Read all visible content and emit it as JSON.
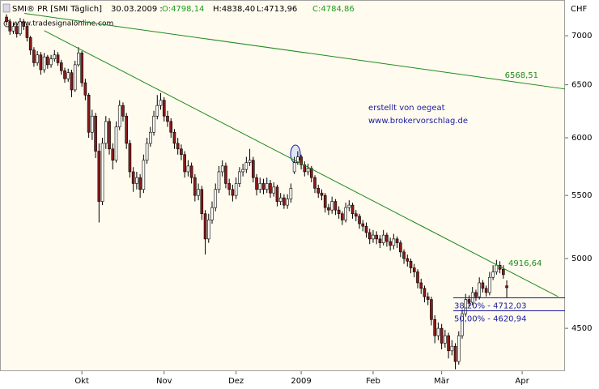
{
  "chart_data": {
    "type": "candlestick",
    "header": {
      "name": "SMI® PR [SMI Täglich]",
      "date": "30.03.2009 :",
      "open": "O:4798,14",
      "high": "H:4838,40",
      "low": "L:4713,96",
      "close": "C:4784,86"
    },
    "watermark": "www.tradesignalonline.com",
    "annotations": [
      "erstellt von oegeat",
      "www.brokervorschlag.de"
    ],
    "y_unit": "CHF",
    "log_scale": true,
    "ylim": [
      4218,
      7343
    ],
    "yticks": [
      4500,
      5000,
      5500,
      6000,
      6500,
      7000
    ],
    "xlim": [
      -1.9,
      163
    ],
    "xticks": [
      {
        "value": 22,
        "label": "Okt"
      },
      {
        "value": 46,
        "label": "Nov"
      },
      {
        "value": 67,
        "label": "Dez"
      },
      {
        "value": 86,
        "label": "2009"
      },
      {
        "value": 107,
        "label": "Feb"
      },
      {
        "value": 127,
        "label": "Mär"
      },
      {
        "value": 150.5,
        "label": "Apr"
      }
    ],
    "up_color": "#ffffff",
    "down_color": "#8b1a1a",
    "open": [
      7200,
      7150,
      7050,
      7100,
      7020,
      7150,
      7100,
      6980,
      6850,
      6720,
      6800,
      6650,
      6780,
      6700,
      6760,
      6800,
      6720,
      6640,
      6560,
      6620,
      6450,
      6700,
      6820,
      6520,
      6400,
      6050,
      6200,
      5880,
      5450,
      5950,
      6150,
      5900,
      5800,
      6100,
      6300,
      6200,
      5950,
      5700,
      5600,
      5650,
      5550,
      5800,
      5950,
      6050,
      6200,
      6300,
      6350,
      6200,
      6150,
      6050,
      5950,
      5900,
      5850,
      5700,
      5750,
      5650,
      5500,
      5550,
      5350,
      5150,
      5300,
      5400,
      5550,
      5700,
      5750,
      5600,
      5550,
      5500,
      5600,
      5700,
      5720,
      5780,
      5800,
      5650,
      5550,
      5600,
      5550,
      5600,
      5520,
      5570,
      5450,
      5480,
      5420,
      5470,
      5700,
      5780,
      5830,
      5760,
      5700,
      5730,
      5650,
      5560,
      5520,
      5500,
      5400,
      5380,
      5450,
      5380,
      5350,
      5300,
      5400,
      5420,
      5350,
      5330,
      5270,
      5250,
      5200,
      5150,
      5180,
      5150,
      5120,
      5180,
      5130,
      5100,
      5150,
      5120,
      5050,
      5000,
      4980,
      4930,
      4900,
      4820,
      4780,
      4720,
      4700,
      4560,
      4450,
      4500,
      4400,
      4450,
      4350,
      4380,
      4280,
      4450,
      4600,
      4700,
      4680,
      4750,
      4720,
      4820,
      4780,
      4750,
      4860,
      4900,
      4950,
      4920,
      4798.14
    ],
    "high": [
      7230,
      7180,
      7140,
      7130,
      7190,
      7180,
      7120,
      7000,
      6880,
      6840,
      6830,
      6820,
      6800,
      6800,
      6850,
      6830,
      6750,
      6670,
      6660,
      6650,
      6740,
      6880,
      6840,
      6560,
      6420,
      6260,
      6230,
      5950,
      6000,
      6200,
      6180,
      5950,
      6150,
      6350,
      6330,
      6230,
      5980,
      5740,
      5700,
      5680,
      5850,
      6000,
      6100,
      6250,
      6400,
      6420,
      6380,
      6250,
      6180,
      6080,
      6000,
      5940,
      5880,
      5800,
      5780,
      5680,
      5600,
      5580,
      5380,
      5350,
      5450,
      5600,
      5750,
      5800,
      5780,
      5640,
      5590,
      5650,
      5740,
      5770,
      5830,
      5900,
      5830,
      5680,
      5650,
      5640,
      5650,
      5630,
      5610,
      5590,
      5520,
      5510,
      5510,
      5600,
      5830,
      5880,
      5850,
      5790,
      5770,
      5750,
      5670,
      5590,
      5550,
      5520,
      5430,
      5490,
      5470,
      5410,
      5370,
      5440,
      5460,
      5440,
      5380,
      5350,
      5300,
      5280,
      5230,
      5220,
      5210,
      5180,
      5220,
      5200,
      5160,
      5190,
      5170,
      5140,
      5070,
      5030,
      5000,
      4960,
      4920,
      4850,
      4800,
      4750,
      4720,
      4590,
      4540,
      4530,
      4490,
      4470,
      4420,
      4400,
      4480,
      4630,
      4740,
      4730,
      4790,
      4770,
      4860,
      4840,
      4800,
      4900,
      4950,
      4990,
      4980,
      4950,
      4838.4
    ],
    "low": [
      7110,
      7010,
      7020,
      6980,
      7000,
      7060,
      6940,
      6800,
      6680,
      6690,
      6600,
      6620,
      6660,
      6670,
      6730,
      6690,
      6600,
      6520,
      6530,
      6380,
      6430,
      6680,
      6480,
      6350,
      6000,
      5980,
      5820,
      5280,
      5420,
      5900,
      5850,
      5720,
      5780,
      6070,
      6150,
      5900,
      5650,
      5530,
      5550,
      5480,
      5520,
      5770,
      5920,
      6020,
      6170,
      6260,
      6150,
      6100,
      6000,
      5900,
      5850,
      5800,
      5650,
      5660,
      5600,
      5450,
      5460,
      5300,
      5030,
      5120,
      5270,
      5370,
      5520,
      5660,
      5560,
      5500,
      5450,
      5470,
      5570,
      5660,
      5690,
      5750,
      5610,
      5500,
      5520,
      5510,
      5520,
      5480,
      5490,
      5410,
      5420,
      5390,
      5390,
      5440,
      5680,
      5760,
      5720,
      5660,
      5670,
      5610,
      5520,
      5480,
      5460,
      5360,
      5340,
      5350,
      5340,
      5310,
      5260,
      5280,
      5370,
      5310,
      5290,
      5230,
      5210,
      5160,
      5110,
      5120,
      5110,
      5080,
      5100,
      5090,
      5060,
      5070,
      5080,
      5010,
      4960,
      4940,
      4890,
      4860,
      4780,
      4740,
      4680,
      4660,
      4520,
      4400,
      4420,
      4360,
      4370,
      4300,
      4320,
      4230,
      4260,
      4430,
      4580,
      4650,
      4660,
      4690,
      4700,
      4750,
      4720,
      4730,
      4840,
      4880,
      4890,
      4850,
      4713.96
    ],
    "close": [
      7150,
      7050,
      7100,
      7020,
      7150,
      7100,
      6980,
      6850,
      6720,
      6800,
      6650,
      6780,
      6700,
      6760,
      6800,
      6720,
      6640,
      6560,
      6620,
      6450,
      6700,
      6820,
      6520,
      6400,
      6050,
      6200,
      5880,
      5450,
      5950,
      6150,
      5900,
      5800,
      6100,
      6300,
      6200,
      5950,
      5700,
      5600,
      5650,
      5550,
      5800,
      5950,
      6050,
      6200,
      6300,
      6350,
      6200,
      6150,
      6050,
      5950,
      5900,
      5850,
      5700,
      5750,
      5650,
      5500,
      5550,
      5350,
      5150,
      5300,
      5400,
      5550,
      5700,
      5750,
      5600,
      5550,
      5500,
      5600,
      5700,
      5720,
      5780,
      5800,
      5650,
      5550,
      5600,
      5550,
      5600,
      5520,
      5570,
      5450,
      5480,
      5420,
      5470,
      5560,
      5780,
      5830,
      5760,
      5700,
      5730,
      5650,
      5560,
      5520,
      5500,
      5400,
      5380,
      5450,
      5380,
      5350,
      5300,
      5400,
      5420,
      5350,
      5330,
      5270,
      5250,
      5200,
      5150,
      5180,
      5150,
      5120,
      5180,
      5130,
      5100,
      5150,
      5120,
      5050,
      5000,
      4980,
      4930,
      4900,
      4820,
      4780,
      4720,
      4700,
      4560,
      4450,
      4500,
      4400,
      4450,
      4350,
      4380,
      4280,
      4450,
      4600,
      4700,
      4680,
      4750,
      4720,
      4820,
      4780,
      4750,
      4860,
      4900,
      4950,
      4920,
      4880,
      4784.86
    ],
    "trendlines": [
      {
        "label": "6568,51",
        "color": "#1f8a1f",
        "x": [
          5.2,
          163
        ],
        "values": [
          7240,
          6459
        ]
      },
      {
        "label": "4916,64",
        "color": "#1f8a1f",
        "x": [
          11,
          161
        ],
        "values": [
          7054,
          4720
        ]
      }
    ],
    "levels": [
      {
        "value": 4712.03,
        "label": "38,20% - 4712,03",
        "color": "#1a1aa0",
        "x": [
          130.4,
          163
        ]
      },
      {
        "value": 4620.94,
        "label": "50,00% - 4620,94",
        "color": "#1a1aa0",
        "x": [
          130.4,
          163
        ]
      }
    ]
  }
}
